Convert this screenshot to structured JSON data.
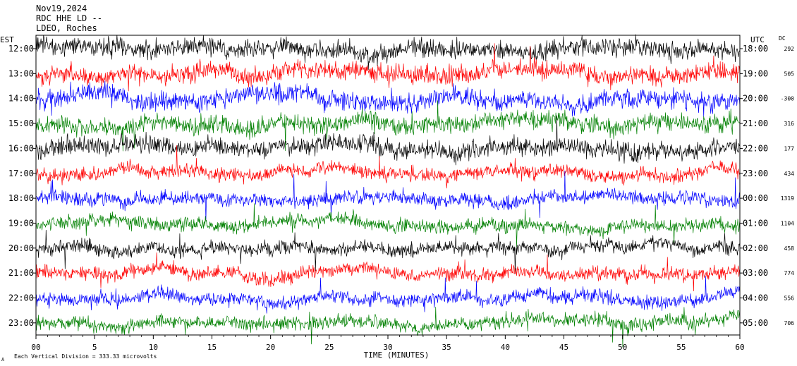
{
  "header": {
    "date": "Nov19,2024",
    "station": "RDC HHE LD --",
    "network": "LDEO, Roches"
  },
  "labels": {
    "left_tz": "EST",
    "right_tz": "UTC",
    "dc": "DC",
    "footer": "Each Vertical Division =  333.33 microvolts",
    "footer_mark": "A"
  },
  "colors": {
    "trace_cycle": [
      "#000000",
      "#ff0000",
      "#0000ff",
      "#008000"
    ],
    "axis": "#000000",
    "background": "#ffffff"
  },
  "chart_data": {
    "type": "line",
    "title": "",
    "xlabel": "TIME (MINUTES)",
    "ylabel": "",
    "xlim": [
      0,
      60
    ],
    "x_ticks": [
      0,
      5,
      10,
      15,
      20,
      25,
      30,
      35,
      40,
      45,
      50,
      55,
      60
    ],
    "x_tick_labels": [
      "00",
      "5",
      "10",
      "15",
      "20",
      "25",
      "30",
      "35",
      "40",
      "45",
      "50",
      "55",
      "60"
    ],
    "rows": [
      {
        "est": "12:00",
        "utc": "18:00",
        "dc": "292",
        "color": "#000000"
      },
      {
        "est": "13:00",
        "utc": "19:00",
        "dc": "505",
        "color": "#ff0000"
      },
      {
        "est": "14:00",
        "utc": "20:00",
        "dc": "-300",
        "color": "#0000ff"
      },
      {
        "est": "15:00",
        "utc": "21:00",
        "dc": "316",
        "color": "#008000"
      },
      {
        "est": "16:00",
        "utc": "22:00",
        "dc": "177",
        "color": "#000000"
      },
      {
        "est": "17:00",
        "utc": "23:00",
        "dc": "434",
        "color": "#ff0000"
      },
      {
        "est": "18:00",
        "utc": "00:00",
        "dc": "1319",
        "color": "#0000ff"
      },
      {
        "est": "19:00",
        "utc": "01:00",
        "dc": "1104",
        "color": "#008000"
      },
      {
        "est": "20:00",
        "utc": "02:00",
        "dc": "458",
        "color": "#000000"
      },
      {
        "est": "21:00",
        "utc": "03:00",
        "dc": "774",
        "color": "#ff0000"
      },
      {
        "est": "22:00",
        "utc": "04:00",
        "dc": "556",
        "color": "#0000ff"
      },
      {
        "est": "23:00",
        "utc": "05:00",
        "dc": "706",
        "color": "#008000"
      }
    ],
    "grid": false,
    "legend": "none"
  }
}
